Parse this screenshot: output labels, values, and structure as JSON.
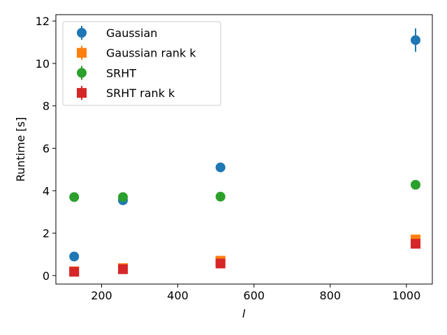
{
  "chart_data": {
    "type": "scatter",
    "title": "",
    "xlabel": "l",
    "ylabel": "Runtime [s]",
    "xlim": [
      80,
      1068
    ],
    "ylim": [
      -0.4,
      12.3
    ],
    "xticks": [
      200,
      400,
      600,
      800,
      1000
    ],
    "yticks": [
      0,
      2,
      4,
      6,
      8,
      10,
      12
    ],
    "grid": false,
    "legend_position": "top-left",
    "series": [
      {
        "name": "Gaussian",
        "marker": "circle",
        "color": "#1f77b4",
        "x": [
          128,
          256,
          512,
          1024
        ],
        "y": [
          0.9,
          3.55,
          5.1,
          11.1
        ],
        "yerr": [
          0.05,
          0.05,
          0.05,
          0.55
        ]
      },
      {
        "name": "Gaussian rank k",
        "marker": "square",
        "color": "#ff7f0e",
        "x": [
          128,
          256,
          512,
          1024
        ],
        "y": [
          0.2,
          0.35,
          0.7,
          1.7
        ],
        "yerr": [
          0.03,
          0.03,
          0.03,
          0.05
        ]
      },
      {
        "name": "SRHT",
        "marker": "circle",
        "color": "#2ca02c",
        "x": [
          128,
          256,
          512,
          1024
        ],
        "y": [
          3.7,
          3.7,
          3.72,
          4.28
        ],
        "yerr": [
          0.03,
          0.03,
          0.03,
          0.03
        ]
      },
      {
        "name": "SRHT rank k",
        "marker": "square",
        "color": "#d62728",
        "x": [
          128,
          256,
          512,
          1024
        ],
        "y": [
          0.18,
          0.3,
          0.57,
          1.5
        ],
        "yerr": [
          0.03,
          0.03,
          0.03,
          0.05
        ]
      }
    ]
  }
}
